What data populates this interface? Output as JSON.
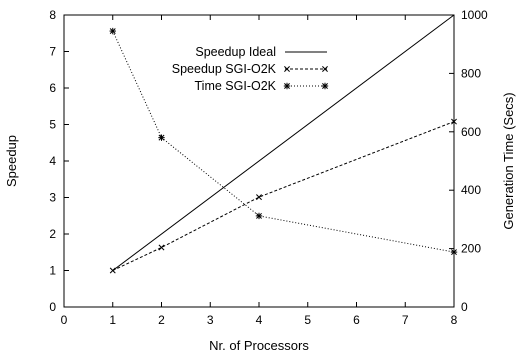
{
  "chart_data": {
    "type": "line",
    "xlabel": "Nr. of Processors",
    "ylabel_left": "Speedup",
    "ylabel_right": "Generation Time (Secs)",
    "xlim": [
      0,
      8
    ],
    "ylim_left": [
      0,
      8
    ],
    "ylim_right": [
      0,
      1000
    ],
    "x_ticks": [
      "0",
      "1",
      "2",
      "3",
      "4",
      "5",
      "6",
      "7",
      "8"
    ],
    "y_ticks_left": [
      "0",
      "1",
      "2",
      "3",
      "4",
      "5",
      "6",
      "7",
      "8"
    ],
    "y_ticks_right": [
      "0",
      "200",
      "400",
      "600",
      "800",
      "1000"
    ],
    "grid": false,
    "legend_position": "top-center",
    "series": [
      {
        "name": "Speedup Ideal",
        "axis": "left",
        "style": "solid",
        "x": [
          1,
          8
        ],
        "values": [
          1,
          8
        ]
      },
      {
        "name": "Speedup SGI-O2K",
        "axis": "left",
        "style": "dashed",
        "marker": "x",
        "x": [
          1,
          2,
          4,
          8
        ],
        "values": [
          1,
          1.63,
          3.01,
          5.08
        ]
      },
      {
        "name": "Time SGI-O2K",
        "axis": "right",
        "style": "dotted",
        "marker": "star",
        "x": [
          1,
          2,
          4,
          8
        ],
        "values": [
          945,
          580,
          312,
          188
        ]
      }
    ]
  }
}
